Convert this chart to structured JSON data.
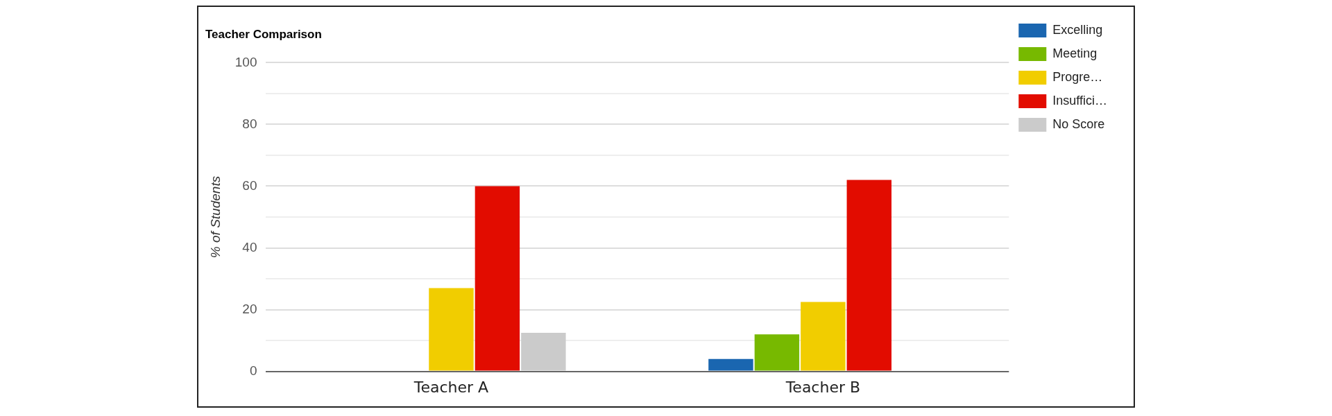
{
  "chart_data": {
    "type": "bar",
    "title": "Teacher Comparison",
    "ylabel": "% of Students",
    "categories": [
      "Teacher A",
      "Teacher B"
    ],
    "series": [
      {
        "name": "Excelling",
        "color": "#1a66b0",
        "values": [
          0,
          4
        ]
      },
      {
        "name": "Meeting",
        "color": "#77b900",
        "values": [
          0,
          12
        ]
      },
      {
        "name": "Progre…",
        "color": "#f1cd00",
        "values": [
          27,
          22.5
        ]
      },
      {
        "name": "Insuffici…",
        "color": "#e20c00",
        "values": [
          60,
          62
        ]
      },
      {
        "name": "No Score",
        "color": "#cbcbcb",
        "values": [
          12.5,
          0
        ]
      }
    ],
    "ylim": [
      0,
      100
    ],
    "yticks": [
      0,
      {
        "value": 10,
        "label": null
      },
      20,
      {
        "value": 30,
        "label": null
      },
      40,
      {
        "value": 50,
        "label": null
      },
      60,
      {
        "value": 70,
        "label": null
      },
      80,
      {
        "value": 90,
        "label": null
      },
      100
    ],
    "grid": "y",
    "legend": "right"
  }
}
